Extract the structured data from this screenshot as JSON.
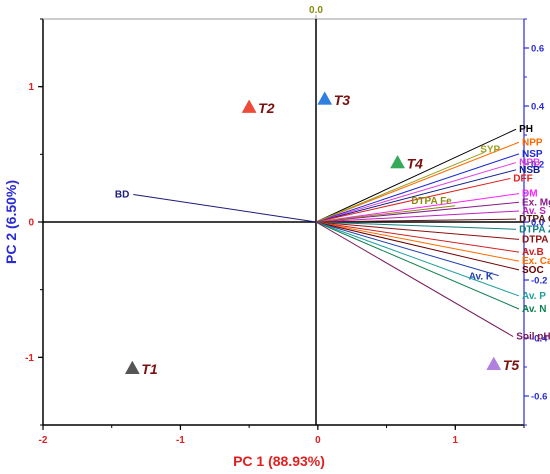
{
  "chart_data": {
    "type": "biplot",
    "xlabel": "PC 1 (88.93%)",
    "ylabel": "PC 2 (6.50%)",
    "xlim": [
      -2,
      1.5
    ],
    "ylim": [
      -1.5,
      1.5
    ],
    "loading_lim": [
      -0.7,
      0.7
    ],
    "x_ticks": [
      "-2",
      "-1",
      "0",
      "1"
    ],
    "y_ticks": [
      "-1",
      "0",
      "1"
    ],
    "top_axis_label": "0.0",
    "right_ticks": [
      "0.6",
      "0.4",
      "0.2",
      "0.0",
      "-0.2",
      "-0.4",
      "-0.6"
    ],
    "treatments": [
      {
        "name": "T1",
        "x": -1.35,
        "y": -1.08,
        "color": "#555555"
      },
      {
        "name": "T2",
        "x": -0.5,
        "y": 0.85,
        "color": "#ee4a3a"
      },
      {
        "name": "T3",
        "x": 0.05,
        "y": 0.91,
        "color": "#2f7fe0"
      },
      {
        "name": "T4",
        "x": 0.58,
        "y": 0.44,
        "color": "#35a85a"
      },
      {
        "name": "T5",
        "x": 1.28,
        "y": -1.05,
        "color": "#b080e0"
      }
    ],
    "variables": [
      {
        "name": "PH",
        "x": 0.69,
        "y": 0.32,
        "color": "#000000"
      },
      {
        "name": "NPP",
        "x": 0.7,
        "y": 0.275,
        "color": "#ff6a00"
      },
      {
        "name": "NSP",
        "x": 0.7,
        "y": 0.235,
        "color": "#1f2bd0"
      },
      {
        "name": "SYP",
        "x": 0.58,
        "y": 0.24,
        "color": "#9aa020"
      },
      {
        "name": "NPB",
        "x": 0.69,
        "y": 0.205,
        "color": "#e040e0"
      },
      {
        "name": "NSB",
        "x": 0.69,
        "y": 0.18,
        "color": "#101e8a"
      },
      {
        "name": "DFF",
        "x": 0.67,
        "y": 0.15,
        "color": "#e02020"
      },
      {
        "name": "DM",
        "x": 0.7,
        "y": 0.098,
        "color": "#ff20ff"
      },
      {
        "name": "Ex. Mg",
        "x": 0.7,
        "y": 0.068,
        "color": "#8b1a8b"
      },
      {
        "name": "DTPA Fe",
        "x": 0.48,
        "y": 0.056,
        "color": "#8a8a10"
      },
      {
        "name": "Av. S",
        "x": 0.7,
        "y": 0.038,
        "color": "#c020c0"
      },
      {
        "name": "DTPA Cu",
        "x": 0.69,
        "y": 0.01,
        "color": "#5a1a1a"
      },
      {
        "name": "DTPA Zn",
        "x": 0.69,
        "y": -0.025,
        "color": "#108080"
      },
      {
        "name": "DTPA Mn",
        "x": 0.7,
        "y": -0.06,
        "color": "#8b1010"
      },
      {
        "name": "Av.B",
        "x": 0.7,
        "y": -0.104,
        "color": "#d02020"
      },
      {
        "name": "Ex. Ca",
        "x": 0.7,
        "y": -0.135,
        "color": "#ff6a00"
      },
      {
        "name": "SOC",
        "x": 0.7,
        "y": -0.165,
        "color": "#6b0000"
      },
      {
        "name": "Av. K",
        "x": 0.63,
        "y": -0.185,
        "color": "#1f3fb0"
      },
      {
        "name": "Av. P",
        "x": 0.7,
        "y": -0.255,
        "color": "#20a0a0"
      },
      {
        "name": "Av. N",
        "x": 0.7,
        "y": -0.3,
        "color": "#108050"
      },
      {
        "name": "Soil pH",
        "x": 0.68,
        "y": -0.395,
        "color": "#7a1a5a"
      },
      {
        "name": "BD",
        "x": -0.63,
        "y": 0.095,
        "color": "#1a1a7a"
      }
    ]
  }
}
